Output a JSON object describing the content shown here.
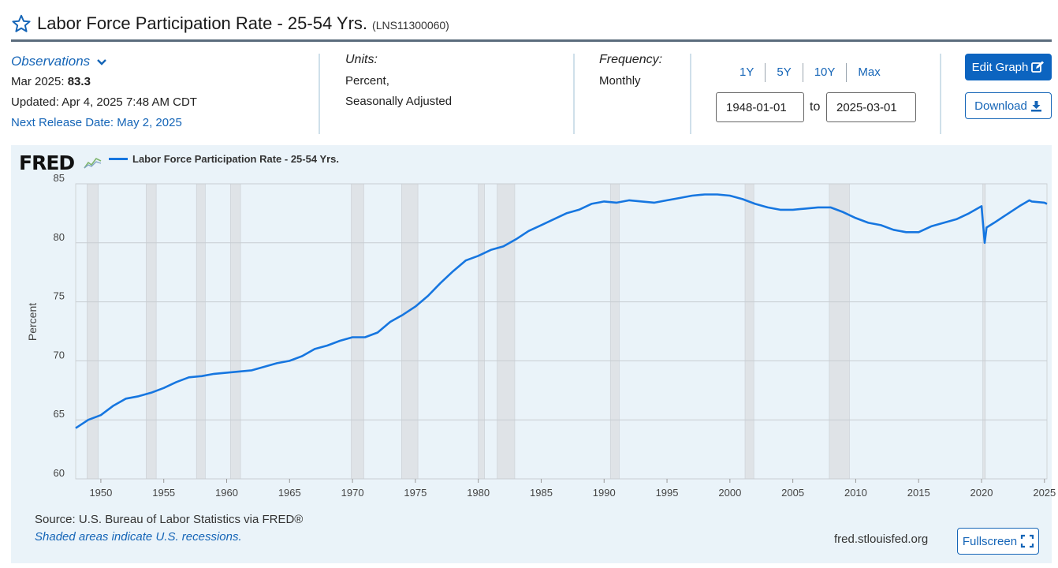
{
  "header": {
    "title": "Labor Force Participation Rate - 25-54 Yrs.",
    "series_id": "(LNS11300060)"
  },
  "observations": {
    "label": "Observations",
    "latest_date": "Mar 2025:",
    "latest_value": "83.3",
    "updated": "Updated: Apr 4, 2025 7:48 AM CDT",
    "next_release": "Next Release Date: May 2, 2025"
  },
  "units": {
    "label": "Units:",
    "line1": "Percent,",
    "line2": "Seasonally Adjusted"
  },
  "frequency": {
    "label": "Frequency:",
    "value": "Monthly"
  },
  "range_buttons": [
    "1Y",
    "5Y",
    "10Y",
    "Max"
  ],
  "date_range": {
    "start": "1948-01-01",
    "to_label": "to",
    "end": "2025-03-01"
  },
  "buttons": {
    "edit_graph": "Edit Graph",
    "download": "Download",
    "fullscreen": "Fullscreen"
  },
  "footer": {
    "source": "Source: U.S. Bureau of Labor Statistics via FRED®",
    "recession_note": "Shaded areas indicate U.S. recessions.",
    "url": "fred.stlouisfed.org"
  },
  "logo_text": "FRED",
  "colors": {
    "line": "#1676e0",
    "accent": "#0c64c0",
    "panel_bg": "#eaf3f9",
    "recession": "#dfe3e7"
  },
  "chart_data": {
    "type": "line",
    "title": "",
    "legend": [
      "Labor Force Participation Rate - 25-54 Yrs."
    ],
    "ylabel": "Percent",
    "xlabel": "",
    "ylim": [
      60,
      85
    ],
    "xlim": [
      1948.0,
      2025.2
    ],
    "yticks": [
      60,
      65,
      70,
      75,
      80,
      85
    ],
    "xticks": [
      1950,
      1955,
      1960,
      1965,
      1970,
      1975,
      1980,
      1985,
      1990,
      1995,
      2000,
      2005,
      2010,
      2015,
      2020,
      2025
    ],
    "grid": true,
    "recessions": [
      [
        1948.9,
        1949.8
      ],
      [
        1953.6,
        1954.4
      ],
      [
        1957.6,
        1958.3
      ],
      [
        1960.3,
        1961.1
      ],
      [
        1969.9,
        1970.9
      ],
      [
        1973.9,
        1975.2
      ],
      [
        1980.0,
        1980.5
      ],
      [
        1981.5,
        1982.9
      ],
      [
        1990.5,
        1991.2
      ],
      [
        2001.2,
        2001.9
      ],
      [
        2007.9,
        2009.5
      ],
      [
        2020.1,
        2020.3
      ]
    ],
    "series": [
      {
        "name": "Labor Force Participation Rate - 25-54 Yrs.",
        "x": [
          1948.0,
          1949.0,
          1950.0,
          1951.0,
          1952.0,
          1953.0,
          1954.0,
          1955.0,
          1956.0,
          1957.0,
          1958.0,
          1959.0,
          1960.0,
          1961.0,
          1962.0,
          1963.0,
          1964.0,
          1965.0,
          1966.0,
          1967.0,
          1968.0,
          1969.0,
          1970.0,
          1971.0,
          1972.0,
          1973.0,
          1974.0,
          1975.0,
          1976.0,
          1977.0,
          1978.0,
          1979.0,
          1980.0,
          1981.0,
          1982.0,
          1983.0,
          1984.0,
          1985.0,
          1986.0,
          1987.0,
          1988.0,
          1989.0,
          1990.0,
          1991.0,
          1992.0,
          1993.0,
          1994.0,
          1995.0,
          1996.0,
          1997.0,
          1998.0,
          1999.0,
          2000.0,
          2001.0,
          2002.0,
          2003.0,
          2004.0,
          2005.0,
          2006.0,
          2007.0,
          2008.0,
          2009.0,
          2010.0,
          2011.0,
          2012.0,
          2013.0,
          2014.0,
          2015.0,
          2016.0,
          2017.0,
          2018.0,
          2019.0,
          2020.0,
          2020.25,
          2020.4,
          2021.0,
          2022.0,
          2023.0,
          2023.8,
          2024.0,
          2025.0,
          2025.2
        ],
        "values": [
          64.3,
          65.0,
          65.4,
          66.2,
          66.8,
          67.0,
          67.3,
          67.7,
          68.2,
          68.6,
          68.7,
          68.9,
          69.0,
          69.1,
          69.2,
          69.5,
          69.8,
          70.0,
          70.4,
          71.0,
          71.3,
          71.7,
          72.0,
          72.0,
          72.4,
          73.3,
          73.9,
          74.6,
          75.5,
          76.6,
          77.6,
          78.5,
          78.9,
          79.4,
          79.7,
          80.3,
          81.0,
          81.5,
          82.0,
          82.5,
          82.8,
          83.3,
          83.5,
          83.4,
          83.6,
          83.5,
          83.4,
          83.6,
          83.8,
          84.0,
          84.1,
          84.1,
          84.0,
          83.7,
          83.3,
          83.0,
          82.8,
          82.8,
          82.9,
          83.0,
          83.0,
          82.6,
          82.1,
          81.7,
          81.5,
          81.1,
          80.9,
          80.9,
          81.4,
          81.7,
          82.0,
          82.5,
          83.1,
          80.0,
          81.3,
          81.7,
          82.4,
          83.1,
          83.6,
          83.5,
          83.4,
          83.3
        ]
      }
    ]
  }
}
